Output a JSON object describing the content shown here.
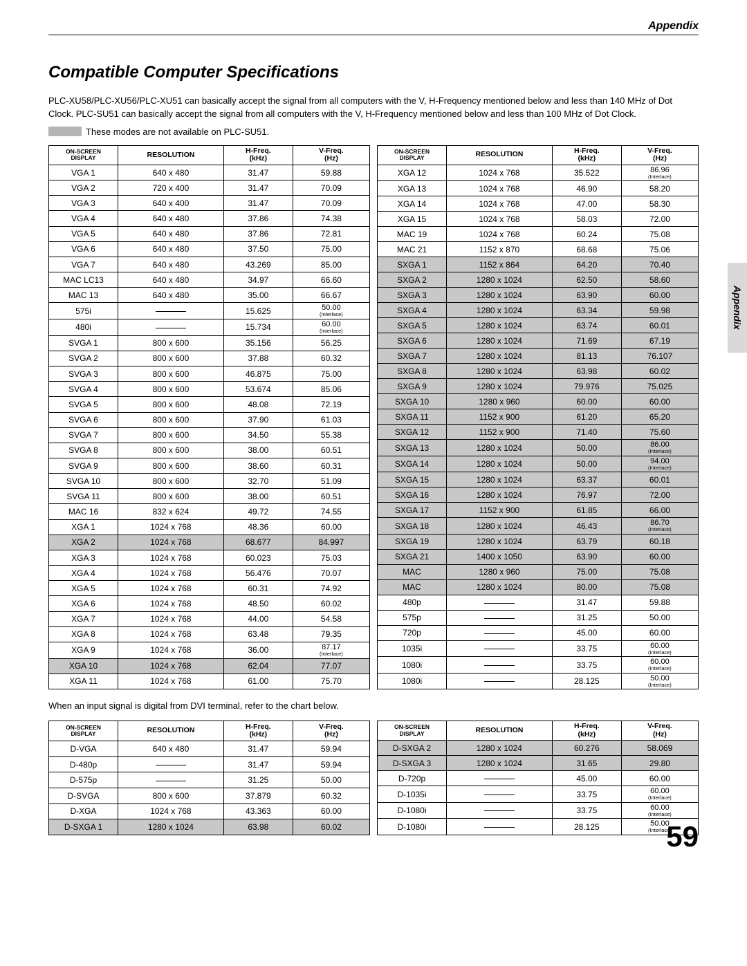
{
  "header_label": "Appendix",
  "side_tab": "Appendix",
  "section_title": "Compatible Computer Specifications",
  "intro_text": "PLC-XU58/PLC-XU56/PLC-XU51 can basically accept the signal from all computers with the V, H-Frequency mentioned below and less than 140 MHz of Dot Clock.  PLC-SU51 can basically accept the signal from all computers with the V, H-Frequency mentioned below and less than 100 MHz of Dot Clock.",
  "note_text": "These modes are not available on PLC-SU51.",
  "between_text": "When an input signal is digital from DVI terminal, refer to the chart below.",
  "page_number": "59",
  "columns": {
    "onscreen_l1": "ON-SCREEN",
    "onscreen_l2": "DISPLAY",
    "resolution": "RESOLUTION",
    "hfreq_l1": "H-Freq.",
    "hfreq_l2": "(kHz)",
    "vfreq_l1": "V-Freq.",
    "vfreq_l2": "(Hz)"
  },
  "table1_left": [
    {
      "disp": "VGA 1",
      "res": "640 x 480",
      "hf": "31.47",
      "vf": "59.88"
    },
    {
      "disp": "VGA 2",
      "res": "720 x 400",
      "hf": "31.47",
      "vf": "70.09"
    },
    {
      "disp": "VGA 3",
      "res": "640 x 400",
      "hf": "31.47",
      "vf": "70.09"
    },
    {
      "disp": "VGA 4",
      "res": "640 x 480",
      "hf": "37.86",
      "vf": "74.38"
    },
    {
      "disp": "VGA 5",
      "res": "640 x 480",
      "hf": "37.86",
      "vf": "72.81"
    },
    {
      "disp": "VGA 6",
      "res": "640 x 480",
      "hf": "37.50",
      "vf": "75.00"
    },
    {
      "disp": "VGA 7",
      "res": "640 x 480",
      "hf": "43.269",
      "vf": "85.00"
    },
    {
      "disp": "MAC LC13",
      "res": "640 x 480",
      "hf": "34.97",
      "vf": "66.60"
    },
    {
      "disp": "MAC 13",
      "res": "640 x 480",
      "hf": "35.00",
      "vf": "66.67"
    },
    {
      "disp": "575i",
      "res": "—",
      "hf": "15.625",
      "vf": "50.00",
      "vf_sub": "(Interlace)"
    },
    {
      "disp": "480i",
      "res": "—",
      "hf": "15.734",
      "vf": "60.00",
      "vf_sub": "(Interlace)"
    },
    {
      "disp": "SVGA 1",
      "res": "800 x 600",
      "hf": "35.156",
      "vf": "56.25"
    },
    {
      "disp": "SVGA 2",
      "res": "800 x 600",
      "hf": "37.88",
      "vf": "60.32"
    },
    {
      "disp": "SVGA 3",
      "res": "800 x 600",
      "hf": "46.875",
      "vf": "75.00"
    },
    {
      "disp": "SVGA 4",
      "res": "800 x 600",
      "hf": "53.674",
      "vf": "85.06"
    },
    {
      "disp": "SVGA 5",
      "res": "800 x 600",
      "hf": "48.08",
      "vf": "72.19"
    },
    {
      "disp": "SVGA 6",
      "res": "800 x 600",
      "hf": "37.90",
      "vf": "61.03"
    },
    {
      "disp": "SVGA 7",
      "res": "800 x 600",
      "hf": "34.50",
      "vf": "55.38"
    },
    {
      "disp": "SVGA 8",
      "res": "800 x 600",
      "hf": "38.00",
      "vf": "60.51"
    },
    {
      "disp": "SVGA 9",
      "res": "800 x 600",
      "hf": "38.60",
      "vf": "60.31"
    },
    {
      "disp": "SVGA 10",
      "res": "800 x 600",
      "hf": "32.70",
      "vf": "51.09"
    },
    {
      "disp": "SVGA 11",
      "res": "800 x 600",
      "hf": "38.00",
      "vf": "60.51"
    },
    {
      "disp": "MAC 16",
      "res": "832 x 624",
      "hf": "49.72",
      "vf": "74.55"
    },
    {
      "disp": "XGA 1",
      "res": "1024 x 768",
      "hf": "48.36",
      "vf": "60.00"
    },
    {
      "disp": "XGA 2",
      "res": "1024 x 768",
      "hf": "68.677",
      "vf": "84.997",
      "shaded": true
    },
    {
      "disp": "XGA 3",
      "res": "1024 x 768",
      "hf": "60.023",
      "vf": "75.03"
    },
    {
      "disp": "XGA 4",
      "res": "1024 x 768",
      "hf": "56.476",
      "vf": "70.07"
    },
    {
      "disp": "XGA 5",
      "res": "1024 x 768",
      "hf": "60.31",
      "vf": "74.92"
    },
    {
      "disp": "XGA 6",
      "res": "1024 x 768",
      "hf": "48.50",
      "vf": "60.02"
    },
    {
      "disp": "XGA 7",
      "res": "1024 x 768",
      "hf": "44.00",
      "vf": "54.58"
    },
    {
      "disp": "XGA 8",
      "res": "1024 x 768",
      "hf": "63.48",
      "vf": "79.35"
    },
    {
      "disp": "XGA 9",
      "res": "1024 x 768",
      "hf": "36.00",
      "vf": "87.17",
      "vf_sub": "(Interlace)"
    },
    {
      "disp": "XGA 10",
      "res": "1024 x 768",
      "hf": "62.04",
      "vf": "77.07",
      "shaded": true
    },
    {
      "disp": "XGA 11",
      "res": "1024 x 768",
      "hf": "61.00",
      "vf": "75.70"
    }
  ],
  "table1_right": [
    {
      "disp": "XGA 12",
      "res": "1024 x 768",
      "hf": "35.522",
      "vf": "86.96",
      "vf_sub": "(Interlace)"
    },
    {
      "disp": "XGA 13",
      "res": "1024 x 768",
      "hf": "46.90",
      "vf": "58.20"
    },
    {
      "disp": "XGA 14",
      "res": "1024 x 768",
      "hf": "47.00",
      "vf": "58.30"
    },
    {
      "disp": "XGA 15",
      "res": "1024 x 768",
      "hf": "58.03",
      "vf": "72.00"
    },
    {
      "disp": "MAC 19",
      "res": "1024 x 768",
      "hf": "60.24",
      "vf": "75.08"
    },
    {
      "disp": "MAC 21",
      "res": "1152 x 870",
      "hf": "68.68",
      "vf": "75.06"
    },
    {
      "disp": "SXGA 1",
      "res": "1152 x 864",
      "hf": "64.20",
      "vf": "70.40",
      "shaded": true
    },
    {
      "disp": "SXGA 2",
      "res": "1280 x 1024",
      "hf": "62.50",
      "vf": "58.60",
      "shaded": true
    },
    {
      "disp": "SXGA 3",
      "res": "1280 x 1024",
      "hf": "63.90",
      "vf": "60.00",
      "shaded": true
    },
    {
      "disp": "SXGA 4",
      "res": "1280 x 1024",
      "hf": "63.34",
      "vf": "59.98",
      "shaded": true
    },
    {
      "disp": "SXGA 5",
      "res": "1280 x 1024",
      "hf": "63.74",
      "vf": "60.01",
      "shaded": true
    },
    {
      "disp": "SXGA 6",
      "res": "1280 x 1024",
      "hf": "71.69",
      "vf": "67.19",
      "shaded": true
    },
    {
      "disp": "SXGA 7",
      "res": "1280 x 1024",
      "hf": "81.13",
      "vf": "76.107",
      "shaded": true
    },
    {
      "disp": "SXGA 8",
      "res": "1280 x 1024",
      "hf": "63.98",
      "vf": "60.02",
      "shaded": true
    },
    {
      "disp": "SXGA 9",
      "res": "1280 x 1024",
      "hf": "79.976",
      "vf": "75.025",
      "shaded": true
    },
    {
      "disp": "SXGA 10",
      "res": "1280 x 960",
      "hf": "60.00",
      "vf": "60.00",
      "shaded": true
    },
    {
      "disp": "SXGA 11",
      "res": "1152 x 900",
      "hf": "61.20",
      "vf": "65.20",
      "shaded": true
    },
    {
      "disp": "SXGA 12",
      "res": "1152 x 900",
      "hf": "71.40",
      "vf": "75.60",
      "shaded": true
    },
    {
      "disp": "SXGA 13",
      "res": "1280 x 1024",
      "hf": "50.00",
      "vf": "86.00",
      "vf_sub": "(Interlace)",
      "shaded": true
    },
    {
      "disp": "SXGA 14",
      "res": "1280 x 1024",
      "hf": "50.00",
      "vf": "94.00",
      "vf_sub": "(Interlace)",
      "shaded": true
    },
    {
      "disp": "SXGA 15",
      "res": "1280 x 1024",
      "hf": "63.37",
      "vf": "60.01",
      "shaded": true
    },
    {
      "disp": "SXGA 16",
      "res": "1280 x 1024",
      "hf": "76.97",
      "vf": "72.00",
      "shaded": true
    },
    {
      "disp": "SXGA 17",
      "res": "1152 x 900",
      "hf": "61.85",
      "vf": "66.00",
      "shaded": true
    },
    {
      "disp": "SXGA 18",
      "res": "1280 x 1024",
      "hf": "46.43",
      "vf": "86.70",
      "vf_sub": "(Interlace)",
      "shaded": true
    },
    {
      "disp": "SXGA 19",
      "res": "1280 x 1024",
      "hf": "63.79",
      "vf": "60.18",
      "shaded": true
    },
    {
      "disp": "SXGA 21",
      "res": "1400 x 1050",
      "hf": "63.90",
      "vf": "60.00",
      "shaded": true
    },
    {
      "disp": "MAC",
      "res": "1280 x 960",
      "hf": "75.00",
      "vf": "75.08",
      "shaded": true
    },
    {
      "disp": "MAC",
      "res": "1280 x 1024",
      "hf": "80.00",
      "vf": "75.08",
      "shaded": true
    },
    {
      "disp": "480p",
      "res": "—",
      "hf": "31.47",
      "vf": "59.88"
    },
    {
      "disp": "575p",
      "res": "—",
      "hf": "31.25",
      "vf": "50.00"
    },
    {
      "disp": "720p",
      "res": "—",
      "hf": "45.00",
      "vf": "60.00"
    },
    {
      "disp": "1035i",
      "res": "—",
      "hf": "33.75",
      "vf": "60.00",
      "vf_sub": "(Interlace)"
    },
    {
      "disp": "1080i",
      "res": "—",
      "hf": "33.75",
      "vf": "60.00",
      "vf_sub": "(Interlace)"
    },
    {
      "disp": "1080i",
      "res": "—",
      "hf": "28.125",
      "vf": "50.00",
      "vf_sub": "(Interlace)"
    }
  ],
  "table2_left": [
    {
      "disp": "D-VGA",
      "res": "640 x 480",
      "hf": "31.47",
      "vf": "59.94"
    },
    {
      "disp": "D-480p",
      "res": "—",
      "hf": "31.47",
      "vf": "59.94"
    },
    {
      "disp": "D-575p",
      "res": "—",
      "hf": "31.25",
      "vf": "50.00"
    },
    {
      "disp": "D-SVGA",
      "res": "800 x 600",
      "hf": "37.879",
      "vf": "60.32"
    },
    {
      "disp": "D-XGA",
      "res": "1024 x 768",
      "hf": "43.363",
      "vf": "60.00"
    },
    {
      "disp": "D-SXGA 1",
      "res": "1280 x 1024",
      "hf": "63.98",
      "vf": "60.02",
      "shaded": true
    }
  ],
  "table2_right": [
    {
      "disp": "D-SXGA 2",
      "res": "1280 x 1024",
      "hf": "60.276",
      "vf": "58.069",
      "shaded": true
    },
    {
      "disp": "D-SXGA 3",
      "res": "1280 x 1024",
      "hf": "31.65",
      "vf": "29.80",
      "shaded": true
    },
    {
      "disp": "D-720p",
      "res": "—",
      "hf": "45.00",
      "vf": "60.00"
    },
    {
      "disp": "D-1035i",
      "res": "—",
      "hf": "33.75",
      "vf": "60.00",
      "vf_sub": "(Interlace)"
    },
    {
      "disp": "D-1080i",
      "res": "—",
      "hf": "33.75",
      "vf": "60.00",
      "vf_sub": "(Interlace)"
    },
    {
      "disp": "D-1080i",
      "res": "—",
      "hf": "28.125",
      "vf": "50.00",
      "vf_sub": "(Interlace)"
    }
  ]
}
